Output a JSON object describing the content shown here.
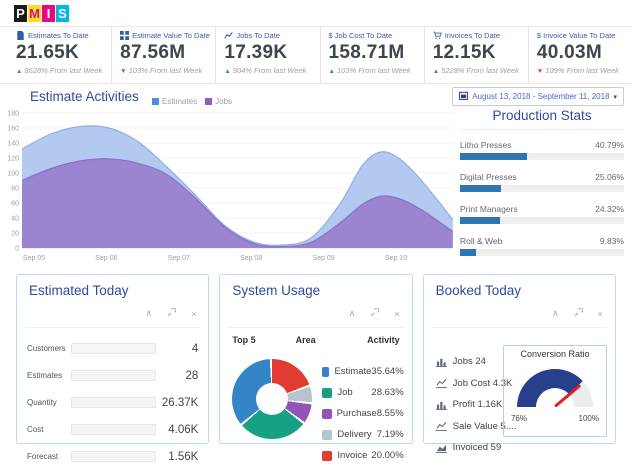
{
  "icons": {
    "trend_up": "▲",
    "trend_down": "▼",
    "collapse": "∧",
    "close": "×",
    "caret_down": "▾"
  },
  "header": {
    "logo_letters": [
      {
        "char": "P",
        "bg": "#1a1a1a",
        "fg": "#ffffff"
      },
      {
        "char": "M",
        "bg": "#f5e027",
        "fg": "#e5097f"
      },
      {
        "char": "I",
        "bg": "#e5097f",
        "fg": "#ffffff"
      },
      {
        "char": "S",
        "bg": "#00b7e8",
        "fg": "#ffffff"
      }
    ]
  },
  "kpis": [
    {
      "icon": "file-icon",
      "label": "Estimates To Date",
      "value": "21.65K",
      "arrow": "▲",
      "arrow_color": "#27a745",
      "delta": "8628% From last Week"
    },
    {
      "icon": "grid-icon",
      "label": "Estimate Value To Date",
      "value": "87.56M",
      "arrow": "▼",
      "arrow_color": "#e0413a",
      "delta": "103% From last Week"
    },
    {
      "icon": "line-chart-icon",
      "label": "Jobs To Date",
      "value": "17.39K",
      "arrow": "▲",
      "arrow_color": "#27a745",
      "delta": "904% From last Week"
    },
    {
      "icon": "dollar-icon",
      "label": "$ Job Cost To Date",
      "value": "158.71M",
      "arrow": "▲",
      "arrow_color": "#27a745",
      "delta": "103% From last Week"
    },
    {
      "icon": "cart-icon",
      "label": "Invoices To Date",
      "value": "12.15K",
      "arrow": "▲",
      "arrow_color": "#27a745",
      "delta": "5228% From last Week"
    },
    {
      "icon": "dollar-icon",
      "label": "$ Invoice Value To Date",
      "value": "40.03M",
      "arrow": "▼",
      "arrow_color": "#e0413a",
      "delta": "109% From last Week"
    }
  ],
  "activities": {
    "date_range": "August 13, 2018 - September 11, 2018"
  },
  "panels": {
    "booked_today": {
      "title": "Booked Today",
      "items": [
        {
          "icon": "bar-chart-icon",
          "text": "Jobs 24"
        },
        {
          "icon": "line-chart-icon",
          "text": "Job Cost 4.3K"
        },
        {
          "icon": "bar-chart-icon",
          "text": "Profit 1.16K"
        },
        {
          "icon": "line-chart-icon",
          "text": "Sale Value 5...."
        },
        {
          "icon": "area-chart-icon",
          "text": "Invoiced 59"
        }
      ]
    }
  },
  "chart_data": [
    {
      "id": "estimate-activities",
      "type": "area",
      "title": "Estimate Activities",
      "x_ticks": [
        "Sep 05",
        "Sep 06",
        "Sep 07",
        "Sep 08",
        "Sep 09",
        "Sep 10"
      ],
      "ylim": [
        0,
        180
      ],
      "ytick_step": 20,
      "grid": true,
      "legend_position": "top",
      "series": [
        {
          "name": "Estimates",
          "legend_color": "#4a90d9",
          "fill": "#b3c9ef",
          "stroke": "#8fb0e4",
          "points": [
            [
              0,
              132
            ],
            [
              0.4,
              152
            ],
            [
              0.8,
              162
            ],
            [
              1.2,
              160
            ],
            [
              1.6,
              142
            ],
            [
              2,
              108
            ],
            [
              2.4,
              70
            ],
            [
              2.8,
              30
            ],
            [
              3.2,
              8
            ],
            [
              3.6,
              4
            ],
            [
              4,
              14
            ],
            [
              4.4,
              60
            ],
            [
              4.7,
              110
            ],
            [
              4.95,
              128
            ],
            [
              5.2,
              120
            ],
            [
              5.5,
              92
            ],
            [
              5.95,
              38
            ]
          ]
        },
        {
          "name": "Jobs",
          "legend_color": "#8e5fc0",
          "fill": "#9b85d1",
          "stroke": "#8a70c9",
          "points": [
            [
              0,
              90
            ],
            [
              0.4,
              106
            ],
            [
              0.8,
              116
            ],
            [
              1.2,
              119
            ],
            [
              1.6,
              113
            ],
            [
              2,
              98
            ],
            [
              2.4,
              66
            ],
            [
              2.8,
              28
            ],
            [
              3.2,
              6
            ],
            [
              3.6,
              2
            ],
            [
              4,
              8
            ],
            [
              4.4,
              34
            ],
            [
              4.7,
              58
            ],
            [
              4.95,
              69
            ],
            [
              5.2,
              66
            ],
            [
              5.5,
              52
            ],
            [
              5.95,
              22
            ]
          ]
        }
      ]
    },
    {
      "id": "production-stats",
      "type": "bar",
      "title": "Production Stats",
      "orientation": "horizontal",
      "categories": [
        "Litho Presses",
        "Digital Presses",
        "Print Managers",
        "Roll & Web"
      ],
      "values": [
        40.79,
        25.06,
        24.32,
        9.83
      ],
      "labels": [
        "40.79%",
        "25.06%",
        "24.32%",
        "9.83%"
      ]
    },
    {
      "id": "estimated-today",
      "type": "bar",
      "title": "Estimated Today",
      "orientation": "horizontal",
      "categories": [
        "Customers",
        "Estimates",
        "Quantity",
        "Cost",
        "Forecast"
      ],
      "values": [
        4,
        28,
        26370,
        4060,
        1560
      ],
      "display_values": [
        "4",
        "28",
        "26.37K",
        "4.06K",
        "1.56K"
      ],
      "bar_pct": [
        4,
        27,
        100,
        71,
        27
      ]
    },
    {
      "id": "system-usage",
      "type": "pie",
      "title": "System Usage",
      "col_headers": {
        "top": "Top 5",
        "area": "Area",
        "activity": "Activity"
      },
      "categories": [
        "Estimate",
        "Job",
        "Purchase",
        "Delivery",
        "Invoice"
      ],
      "values": [
        35.64,
        28.63,
        8.55,
        7.19,
        20.0
      ],
      "labels": [
        "35.64%",
        "28.63%",
        "8.55%",
        "7.19%",
        "20.00%"
      ],
      "colors": [
        "#3584c7",
        "#16a085",
        "#9355b5",
        "#b6c4cc",
        "#e03c31"
      ],
      "draw_order": [
        4,
        3,
        2,
        1,
        0
      ]
    },
    {
      "id": "conversion-gauge",
      "type": "gauge",
      "title": "Conversion Ratio",
      "min_label": "76%",
      "max_label": "100%",
      "fill_sweep_deg": 137,
      "needle_sweep_deg": 140,
      "fill_color": "#27408b",
      "rest_color": "#ececec"
    }
  ]
}
